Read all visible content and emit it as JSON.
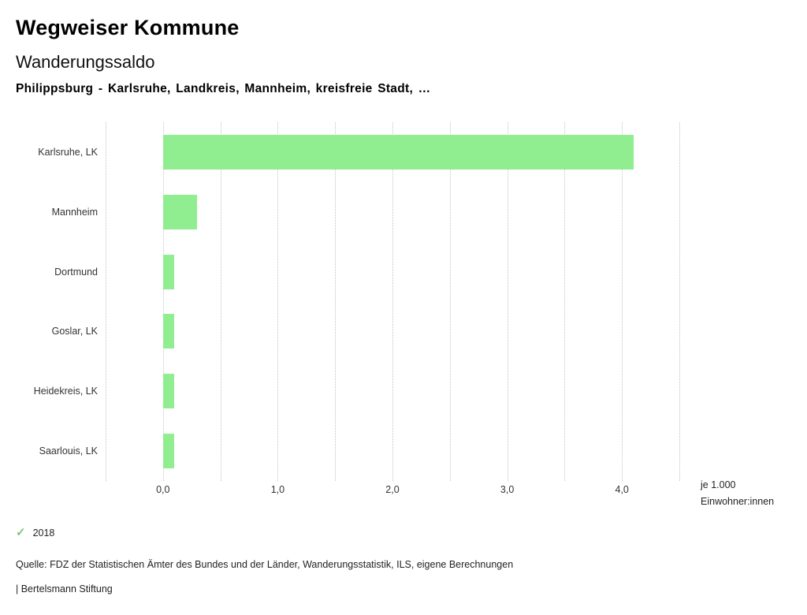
{
  "header": {
    "title": "Wegweiser Kommune",
    "subtitle": "Wanderungssaldo",
    "description": "Philippsburg - Karlsruhe, Landkreis, Mannheim, kreisfreie Stadt, …"
  },
  "chart_data": {
    "type": "bar",
    "orientation": "horizontal",
    "title": "Wanderungssaldo",
    "categories": [
      "Karlsruhe, LK",
      "Mannheim",
      "Dortmund",
      "Goslar, LK",
      "Heidekreis, LK",
      "Saarlouis, LK"
    ],
    "series": [
      {
        "name": "2018",
        "values": [
          4.1,
          0.3,
          0.1,
          0.1,
          0.1,
          0.1
        ]
      }
    ],
    "xlim": [
      -0.5,
      4.5
    ],
    "grid_step": 0.5,
    "grid": "vertical dotted",
    "x_ticks": [
      {
        "value": 0,
        "label": "0,0"
      },
      {
        "value": 1,
        "label": "1,0"
      },
      {
        "value": 2,
        "label": "2,0"
      },
      {
        "value": 3,
        "label": "3,0"
      },
      {
        "value": 4,
        "label": "4,0"
      }
    ],
    "bar_color": "#90ee90",
    "xlabel": "je 1.000 Einwohner:innen",
    "ylabel": "",
    "legend_position": "bottom-left"
  },
  "unit_label": {
    "line1": "je 1.000",
    "line2": "Einwohner:innen"
  },
  "legend": {
    "check_icon": "check",
    "check_color": "#7bc67b",
    "label": "2018"
  },
  "footer": {
    "source": "Quelle: FDZ der Statistischen Ämter des Bundes und der Länder, Wanderungsstatistik, ILS, eigene Berechnungen",
    "brand": "| Bertelsmann Stiftung"
  }
}
